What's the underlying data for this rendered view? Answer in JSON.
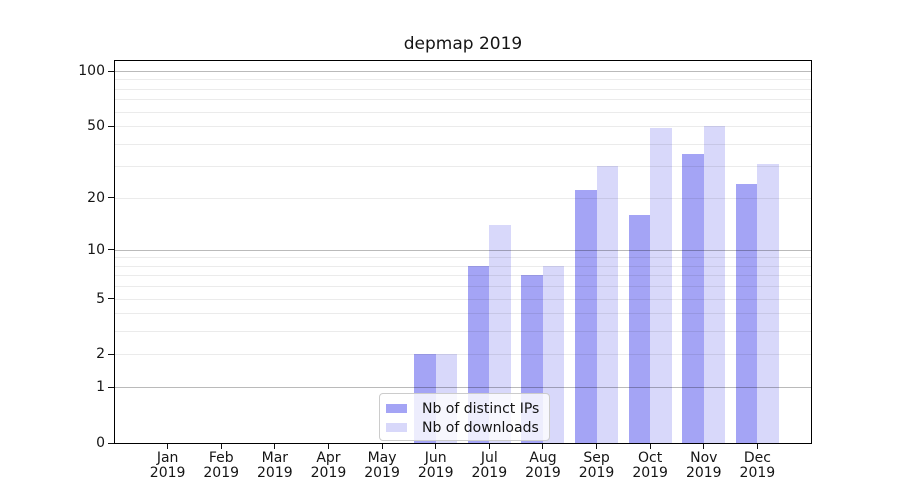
{
  "chart_data": {
    "type": "bar",
    "title": "depmap 2019",
    "categories": [
      "Jan 2019",
      "Feb 2019",
      "Mar 2019",
      "Apr 2019",
      "May 2019",
      "Jun 2019",
      "Jul 2019",
      "Aug 2019",
      "Sep 2019",
      "Oct 2019",
      "Nov 2019",
      "Dec 2019"
    ],
    "series": [
      {
        "name": "Nb of distinct IPs",
        "color": "#a4a4f5",
        "values": [
          0,
          0,
          0,
          0,
          0,
          2,
          8,
          7,
          22,
          16,
          35,
          24
        ]
      },
      {
        "name": "Nb of downloads",
        "color": "#d8d8fa",
        "values": [
          0,
          0,
          0,
          0,
          0,
          2,
          14,
          8,
          30,
          49,
          50,
          31
        ]
      }
    ],
    "xlabel": "",
    "ylabel": "",
    "y_axis": {
      "scale": "log1p",
      "range": [
        0,
        100
      ],
      "tick_values": [
        0,
        1,
        2,
        5,
        10,
        20,
        50,
        100
      ],
      "tick_labels": [
        "0",
        "1",
        "2",
        "5",
        "10",
        "20",
        "50",
        "100"
      ],
      "major_gridline_values": [
        1,
        10,
        100
      ],
      "minor_gridline_values": [
        2,
        3,
        4,
        5,
        6,
        7,
        8,
        9,
        20,
        30,
        40,
        50,
        60,
        70,
        80,
        90
      ],
      "grid": true
    },
    "legend": {
      "position": "lower-center",
      "entries": [
        "Nb of distinct IPs",
        "Nb of downloads"
      ]
    }
  },
  "colors": {
    "background": "#ffffff",
    "axis_frame": "#000000",
    "text": "#151515",
    "major_grid": "rgba(0,0,0,0.27)",
    "minor_grid": "rgba(0,0,0,0.08)",
    "legend_border": "#cccccc",
    "legend_background": "rgba(255,255,255,0.8)"
  }
}
